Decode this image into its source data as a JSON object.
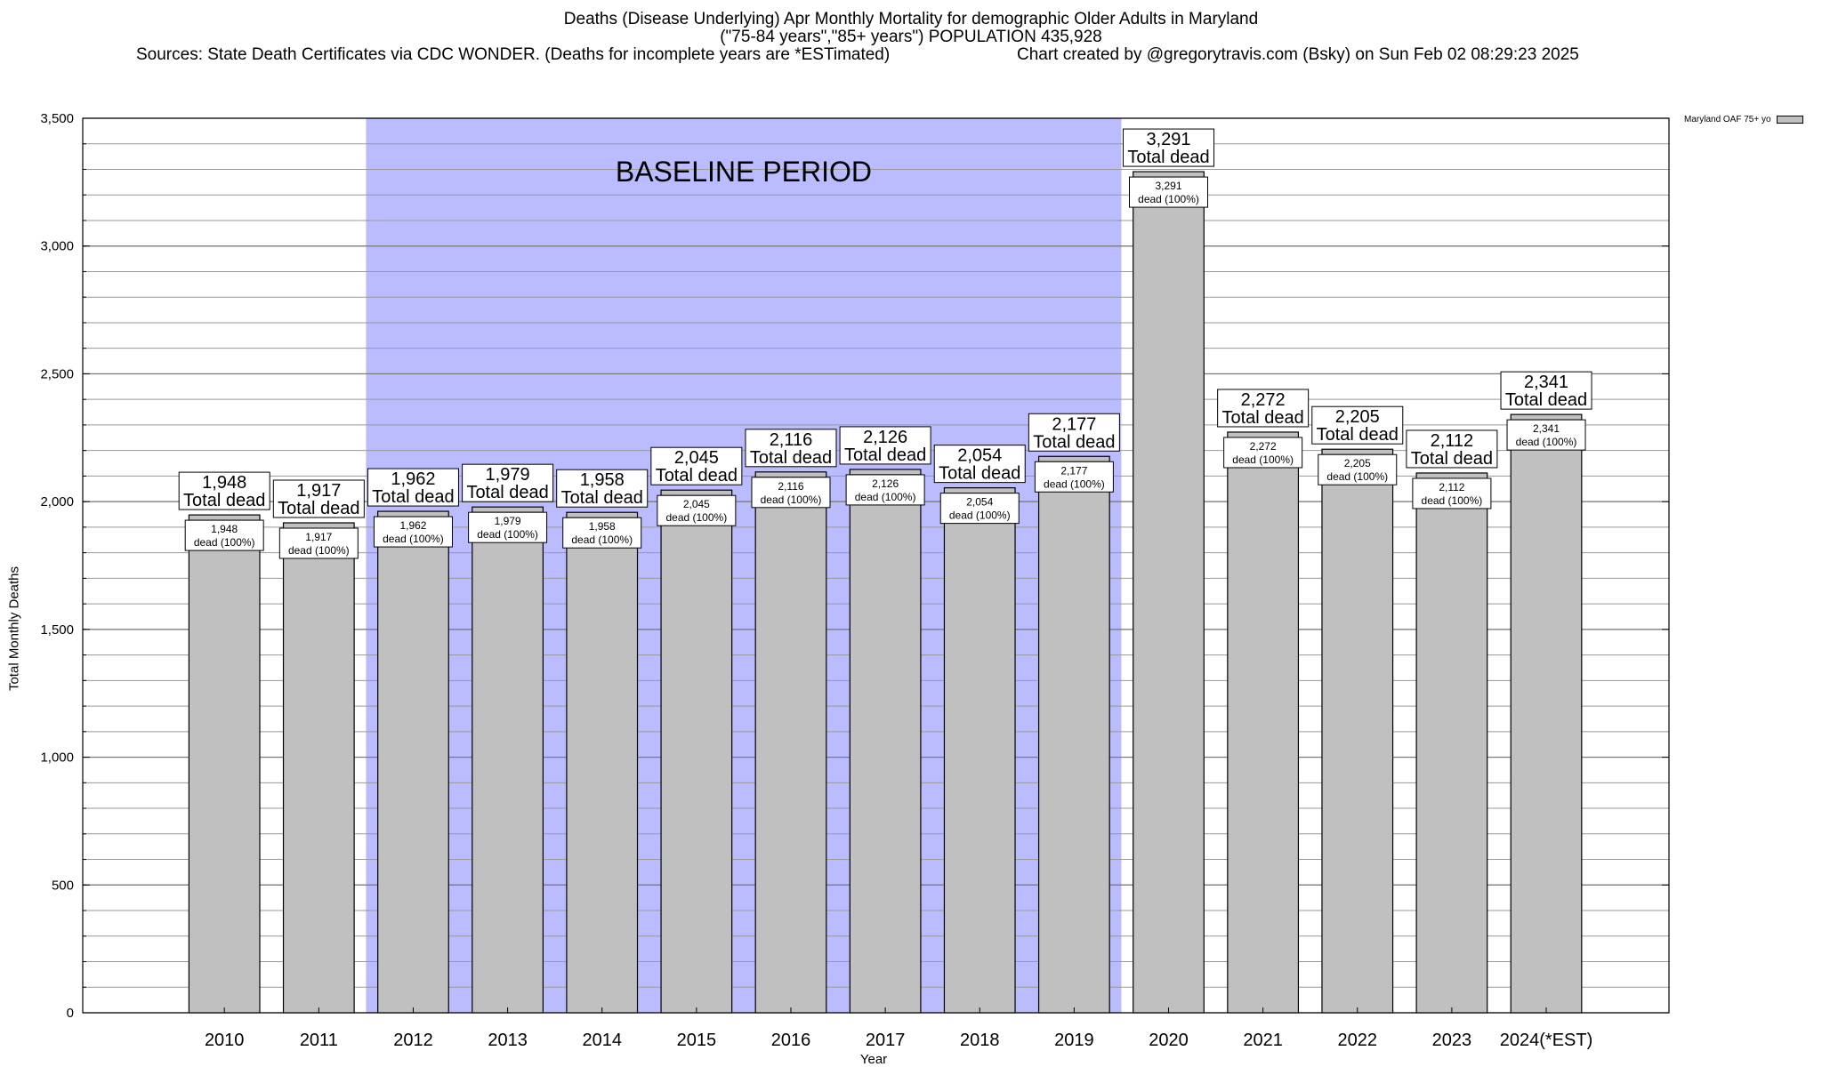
{
  "title": {
    "line1": "Deaths (Disease Underlying) Apr Monthly Mortality for demographic Older Adults in Maryland",
    "line2": "(\"75-84 years\",\"85+ years\") POPULATION 435,928",
    "sources": "Sources: State Death Certificates via CDC WONDER. (Deaths for incomplete years are *ESTimated)",
    "credit": "Chart created by @gregorytravis.com (Bsky) on Sun Feb 02 08:29:23 2025"
  },
  "chart_data": {
    "type": "bar",
    "xlabel": "Year",
    "ylabel": "Total Monthly Deaths",
    "ylim": [
      0,
      3500
    ],
    "yticks": [
      0,
      500,
      1000,
      1500,
      2000,
      2500,
      3000,
      3500
    ],
    "ytick_labels": [
      "0",
      "500",
      "1,000",
      "1,500",
      "2,000",
      "2,500",
      "3,000",
      "3,500"
    ],
    "grid": true,
    "legend_position": "top-right",
    "categories": [
      "2010",
      "2011",
      "2012",
      "2013",
      "2014",
      "2015",
      "2016",
      "2017",
      "2018",
      "2019",
      "2020",
      "2021",
      "2022",
      "2023",
      "2024(*EST)"
    ],
    "series": [
      {
        "name": "Maryland OAF 75+ yo",
        "color": "#c0c0c0",
        "values": [
          1948,
          1917,
          1962,
          1979,
          1958,
          2045,
          2116,
          2126,
          2054,
          2177,
          3291,
          2272,
          2205,
          2112,
          2341
        ]
      }
    ],
    "value_labels": [
      "1,948",
      "1,917",
      "1,962",
      "1,979",
      "1,958",
      "2,045",
      "2,116",
      "2,126",
      "2,054",
      "2,177",
      "3,291",
      "2,272",
      "2,205",
      "2,112",
      "2,341"
    ],
    "total_label_suffix": "Total dead",
    "inner_label_suffix": "dead (100%)",
    "baseline": {
      "label": "BASELINE PERIOD",
      "start": "2012",
      "end": "2019",
      "color": "#bbbbff"
    }
  }
}
